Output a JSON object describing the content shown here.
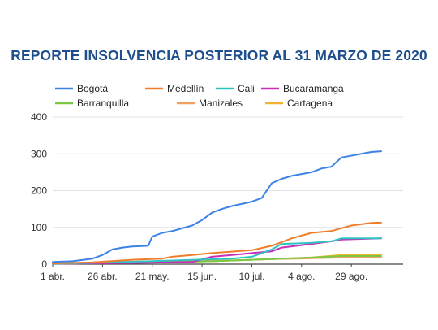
{
  "chart_data": {
    "type": "line",
    "title": "REPORTE INSOLVENCIA POSTERIOR AL 31 MARZO DE 2020",
    "xlabel": "",
    "ylabel": "",
    "x_start": "1 abr.",
    "x_end": "24 sep.",
    "x_ticks": [
      "1 abr.",
      "26 abr.",
      "21 may.",
      "15 jun.",
      "10 jul.",
      "4 ago.",
      "29 ago."
    ],
    "y_ticks": [
      0,
      100,
      200,
      300,
      400
    ],
    "ylim": [
      0,
      400
    ],
    "grid": "horizontal",
    "legend_position": "top",
    "series": [
      {
        "name": "Bogotá",
        "color": "#3b82e6",
        "points": [
          [
            0,
            6
          ],
          [
            10,
            8
          ],
          [
            20,
            15
          ],
          [
            25,
            25
          ],
          [
            30,
            40
          ],
          [
            35,
            45
          ],
          [
            40,
            48
          ],
          [
            48,
            50
          ],
          [
            50,
            75
          ],
          [
            55,
            85
          ],
          [
            60,
            90
          ],
          [
            70,
            105
          ],
          [
            75,
            120
          ],
          [
            80,
            140
          ],
          [
            85,
            150
          ],
          [
            90,
            158
          ],
          [
            100,
            170
          ],
          [
            105,
            180
          ],
          [
            110,
            220
          ],
          [
            115,
            232
          ],
          [
            120,
            240
          ],
          [
            130,
            250
          ],
          [
            135,
            260
          ],
          [
            140,
            265
          ],
          [
            145,
            290
          ],
          [
            160,
            305
          ],
          [
            165,
            307
          ]
        ]
      },
      {
        "name": "Medellín",
        "color": "#f07d2a",
        "points": [
          [
            0,
            2
          ],
          [
            20,
            5
          ],
          [
            40,
            12
          ],
          [
            55,
            15
          ],
          [
            60,
            20
          ],
          [
            70,
            25
          ],
          [
            80,
            30
          ],
          [
            100,
            38
          ],
          [
            110,
            50
          ],
          [
            120,
            70
          ],
          [
            130,
            85
          ],
          [
            140,
            90
          ],
          [
            145,
            98
          ],
          [
            150,
            105
          ],
          [
            160,
            112
          ],
          [
            165,
            113
          ]
        ]
      },
      {
        "name": "Cali",
        "color": "#2ec4c4",
        "points": [
          [
            0,
            1
          ],
          [
            30,
            5
          ],
          [
            60,
            10
          ],
          [
            90,
            15
          ],
          [
            100,
            20
          ],
          [
            110,
            40
          ],
          [
            115,
            55
          ],
          [
            130,
            58
          ],
          [
            140,
            62
          ],
          [
            145,
            70
          ],
          [
            165,
            70
          ]
        ]
      },
      {
        "name": "Bucaramanga",
        "color": "#c72fb8",
        "points": [
          [
            0,
            1
          ],
          [
            40,
            3
          ],
          [
            70,
            6
          ],
          [
            80,
            20
          ],
          [
            90,
            25
          ],
          [
            100,
            30
          ],
          [
            110,
            35
          ],
          [
            115,
            45
          ],
          [
            130,
            55
          ],
          [
            140,
            62
          ],
          [
            145,
            67
          ],
          [
            165,
            70
          ]
        ]
      },
      {
        "name": "Barranquilla",
        "color": "#7ac943",
        "points": [
          [
            0,
            1
          ],
          [
            50,
            5
          ],
          [
            80,
            8
          ],
          [
            100,
            12
          ],
          [
            115,
            15
          ],
          [
            130,
            18
          ],
          [
            145,
            22
          ],
          [
            165,
            22
          ]
        ]
      },
      {
        "name": "Manizales",
        "color": "#f4a060",
        "points": [
          [
            0,
            1
          ],
          [
            30,
            6
          ],
          [
            60,
            8
          ],
          [
            90,
            10
          ],
          [
            110,
            14
          ],
          [
            130,
            16
          ],
          [
            145,
            18
          ],
          [
            165,
            18
          ]
        ]
      },
      {
        "name": "Cartagena",
        "color": "#f2b12e",
        "points": [
          [
            0,
            1
          ],
          [
            40,
            4
          ],
          [
            80,
            8
          ],
          [
            110,
            14
          ],
          [
            130,
            18
          ],
          [
            145,
            25
          ],
          [
            165,
            26
          ]
        ]
      }
    ]
  },
  "colors": {
    "title": "#1f4e8c",
    "grid": "#e2e2e2",
    "baseline": "#444444"
  }
}
